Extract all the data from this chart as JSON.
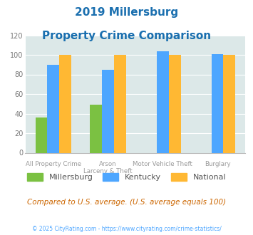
{
  "title_line1": "2019 Millersburg",
  "title_line2": "Property Crime Comparison",
  "cat_labels_line1": [
    "All Property Crime",
    "Arson",
    "Motor Vehicle Theft",
    "Burglary"
  ],
  "cat_labels_line2": [
    "",
    "Larceny & Theft",
    "",
    ""
  ],
  "millersburg": [
    36,
    49,
    0,
    0
  ],
  "kentucky": [
    90,
    85,
    104,
    101
  ],
  "national": [
    100,
    100,
    100,
    100
  ],
  "color_millersburg": "#7bc142",
  "color_kentucky": "#4da6ff",
  "color_national": "#ffb833",
  "ylim": [
    0,
    120
  ],
  "yticks": [
    0,
    20,
    40,
    60,
    80,
    100,
    120
  ],
  "bg_color": "#dce8e8",
  "title_color": "#1a6faf",
  "footer_note": "Compared to U.S. average. (U.S. average equals 100)",
  "footer_copy": "© 2025 CityRating.com - https://www.cityrating.com/crime-statistics/",
  "legend_labels": [
    "Millersburg",
    "Kentucky",
    "National"
  ],
  "footer_note_color": "#cc6600",
  "footer_copy_color": "#4da6ff",
  "xtick_color": "#aaaaaa"
}
